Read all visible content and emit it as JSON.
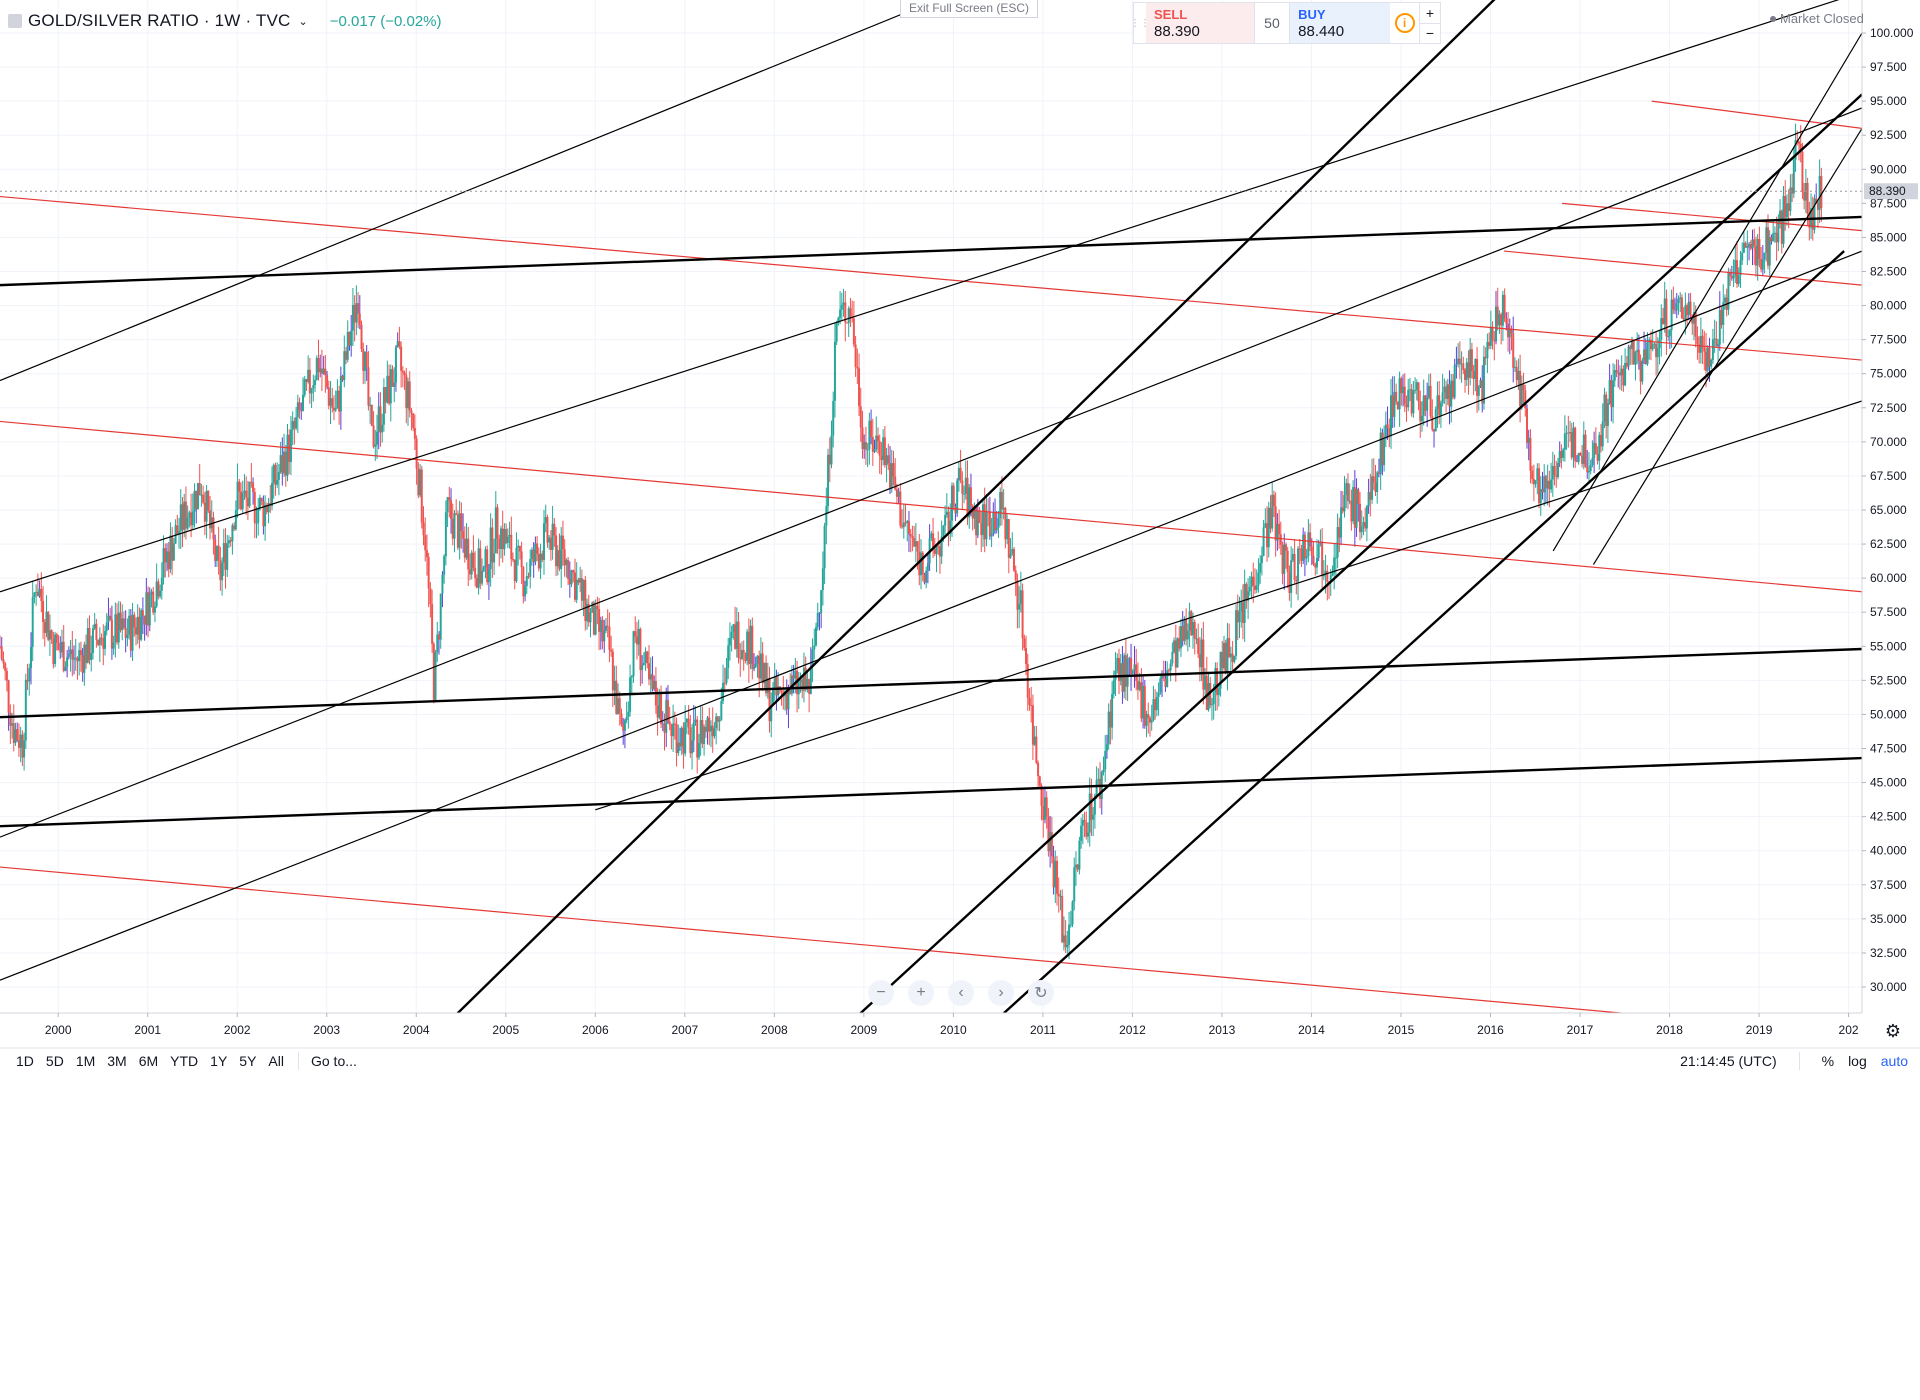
{
  "header": {
    "title": "GOLD/SILVER RATIO · 1W · TVC",
    "change": "−0.017 (−0.02%)",
    "exit_fullscreen": "Exit Full Screen (ESC)",
    "market_status": "Market Closed"
  },
  "trade": {
    "sell_label": "SELL",
    "sell_value": "88.390",
    "qty": "50",
    "buy_label": "BUY",
    "buy_value": "88.440",
    "info_glyph": "i",
    "plus": "+",
    "minus": "−"
  },
  "price_axis": {
    "last_price": "88.390"
  },
  "toolbar": {
    "ranges": [
      "1D",
      "5D",
      "1M",
      "3M",
      "6M",
      "YTD",
      "1Y",
      "5Y",
      "All"
    ],
    "goto": "Go to...",
    "time": "21:14:45 (UTC)",
    "percent": "%",
    "log": "log",
    "auto": "auto"
  },
  "nav": {
    "zoom_out": "−",
    "zoom_in": "+",
    "scroll_left": "‹",
    "scroll_right": "›",
    "reset": "↻"
  },
  "colors": {
    "up": "#26a69a",
    "down": "#ef5350",
    "trend_red": "#e53935",
    "trend_black": "#000000",
    "last_price_bg": "#d1d4dc"
  },
  "chart_data": {
    "type": "candlestick",
    "title": "GOLD/SILVER RATIO · 1W · TVC",
    "xlabel": "",
    "ylabel": "",
    "x_range": [
      1999.35,
      2020.15
    ],
    "ylim": [
      28.0,
      103.0
    ],
    "y_ticks": [
      "30.000",
      "32.500",
      "35.000",
      "37.500",
      "40.000",
      "42.500",
      "45.000",
      "47.500",
      "50.000",
      "52.500",
      "55.000",
      "57.500",
      "60.000",
      "62.500",
      "65.000",
      "67.500",
      "70.000",
      "72.500",
      "75.000",
      "77.500",
      "80.000",
      "82.500",
      "85.000",
      "87.500",
      "90.000",
      "92.500",
      "95.000",
      "97.500",
      "100.000"
    ],
    "x_ticks": [
      "2000",
      "2001",
      "2002",
      "2003",
      "2004",
      "2005",
      "2006",
      "2007",
      "2008",
      "2009",
      "2010",
      "2011",
      "2012",
      "2013",
      "2014",
      "2015",
      "2016",
      "2017",
      "2018",
      "2019",
      "202"
    ],
    "price_path": [
      [
        1999.35,
        55
      ],
      [
        1999.5,
        49
      ],
      [
        1999.6,
        48
      ],
      [
        1999.75,
        60
      ],
      [
        1999.95,
        55
      ],
      [
        2000.2,
        54
      ],
      [
        2000.5,
        56
      ],
      [
        2000.8,
        56
      ],
      [
        2001.0,
        58
      ],
      [
        2001.3,
        63
      ],
      [
        2001.6,
        67
      ],
      [
        2001.8,
        60
      ],
      [
        2002.0,
        66
      ],
      [
        2002.3,
        65
      ],
      [
        2002.6,
        70
      ],
      [
        2002.9,
        76
      ],
      [
        2003.1,
        72
      ],
      [
        2003.35,
        81
      ],
      [
        2003.5,
        70
      ],
      [
        2003.8,
        76
      ],
      [
        2003.95,
        72
      ],
      [
        2004.1,
        63
      ],
      [
        2004.2,
        52
      ],
      [
        2004.35,
        65
      ],
      [
        2004.5,
        63
      ],
      [
        2004.75,
        60
      ],
      [
        2004.9,
        64
      ],
      [
        2005.2,
        60
      ],
      [
        2005.45,
        63
      ],
      [
        2005.7,
        61
      ],
      [
        2005.95,
        57
      ],
      [
        2006.15,
        55
      ],
      [
        2006.3,
        48
      ],
      [
        2006.45,
        56
      ],
      [
        2006.6,
        52
      ],
      [
        2006.85,
        49
      ],
      [
        2007.1,
        48
      ],
      [
        2007.35,
        50
      ],
      [
        2007.55,
        56
      ],
      [
        2007.75,
        55
      ],
      [
        2007.95,
        51
      ],
      [
        2008.2,
        52
      ],
      [
        2008.4,
        52
      ],
      [
        2008.55,
        62
      ],
      [
        2008.7,
        79
      ],
      [
        2008.85,
        80
      ],
      [
        2009.0,
        70
      ],
      [
        2009.2,
        70
      ],
      [
        2009.45,
        64
      ],
      [
        2009.65,
        61
      ],
      [
        2009.9,
        63
      ],
      [
        2010.05,
        67
      ],
      [
        2010.3,
        64
      ],
      [
        2010.55,
        65
      ],
      [
        2010.75,
        58
      ],
      [
        2010.9,
        48
      ],
      [
        2011.05,
        42
      ],
      [
        2011.25,
        33
      ],
      [
        2011.45,
        42
      ],
      [
        2011.65,
        45
      ],
      [
        2011.8,
        53
      ],
      [
        2011.95,
        53
      ],
      [
        2012.2,
        50
      ],
      [
        2012.45,
        54
      ],
      [
        2012.7,
        57
      ],
      [
        2012.85,
        51
      ],
      [
        2013.1,
        55
      ],
      [
        2013.35,
        60
      ],
      [
        2013.55,
        65
      ],
      [
        2013.75,
        60
      ],
      [
        2013.95,
        63
      ],
      [
        2014.2,
        61
      ],
      [
        2014.4,
        66
      ],
      [
        2014.6,
        64
      ],
      [
        2014.8,
        70
      ],
      [
        2014.95,
        74
      ],
      [
        2015.2,
        73
      ],
      [
        2015.45,
        72
      ],
      [
        2015.7,
        76
      ],
      [
        2015.9,
        74
      ],
      [
        2016.1,
        80
      ],
      [
        2016.25,
        77
      ],
      [
        2016.4,
        71
      ],
      [
        2016.55,
        66
      ],
      [
        2016.75,
        69
      ],
      [
        2016.95,
        70
      ],
      [
        2017.15,
        69
      ],
      [
        2017.35,
        74
      ],
      [
        2017.55,
        76
      ],
      [
        2017.75,
        76
      ],
      [
        2017.95,
        79
      ],
      [
        2018.2,
        80
      ],
      [
        2018.45,
        76
      ],
      [
        2018.65,
        81
      ],
      [
        2018.85,
        84
      ],
      [
        2019.05,
        84
      ],
      [
        2019.25,
        86
      ],
      [
        2019.45,
        92
      ],
      [
        2019.55,
        86
      ],
      [
        2019.7,
        88.39
      ]
    ],
    "last_price": 88.39,
    "trendlines_red": [
      [
        [
          1999.35,
          88
        ],
        [
          2020.15,
          76
        ]
      ],
      [
        [
          1999.35,
          71.5
        ],
        [
          2020.15,
          59
        ]
      ],
      [
        [
          1999.35,
          38.8
        ],
        [
          2020.15,
          26.5
        ]
      ],
      [
        [
          2016.15,
          84
        ],
        [
          2020.15,
          81.5
        ]
      ],
      [
        [
          2016.8,
          87.5
        ],
        [
          2020.15,
          85.5
        ]
      ],
      [
        [
          2017.8,
          95
        ],
        [
          2020.15,
          93
        ]
      ]
    ],
    "trendlines_black_thick": [
      [
        [
          1999.35,
          81.5
        ],
        [
          2020.15,
          86.5
        ]
      ],
      [
        [
          1999.35,
          49.8
        ],
        [
          2020.15,
          54.8
        ]
      ],
      [
        [
          1999.35,
          41.8
        ],
        [
          2020.15,
          46.8
        ]
      ],
      [
        [
          2004.45,
          28
        ],
        [
          2016.75,
          107
        ]
      ],
      [
        [
          2008.95,
          28
        ],
        [
          2020.15,
          95.5
        ]
      ],
      [
        [
          2010.55,
          28
        ],
        [
          2019.95,
          84
        ]
      ]
    ],
    "trendlines_black_thin": [
      [
        [
          1999.35,
          74.5
        ],
        [
          2020.15,
          130
        ]
      ],
      [
        [
          1999.35,
          59
        ],
        [
          2020.15,
          103
        ]
      ],
      [
        [
          1999.35,
          41
        ],
        [
          2020.15,
          94.5
        ]
      ],
      [
        [
          1999.35,
          30.5
        ],
        [
          2020.15,
          84
        ]
      ],
      [
        [
          2006.0,
          43
        ],
        [
          2020.15,
          73
        ]
      ],
      [
        [
          2016.7,
          62
        ],
        [
          2020.15,
          100
        ]
      ],
      [
        [
          2017.15,
          61
        ],
        [
          2020.15,
          93
        ]
      ]
    ]
  }
}
